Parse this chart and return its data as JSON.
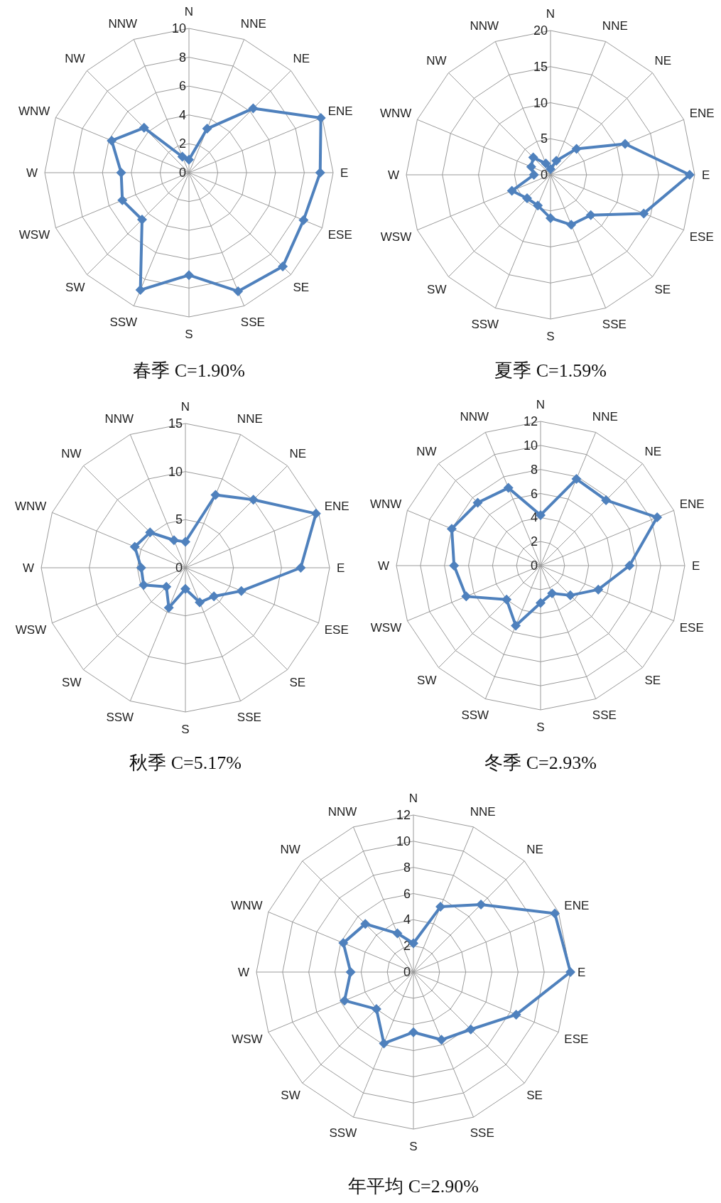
{
  "chart_data": [
    {
      "type": "radar",
      "title": "春季 C=1.90%",
      "categories": [
        "N",
        "NNE",
        "NE",
        "ENE",
        "E",
        "ESE",
        "SE",
        "SSE",
        "S",
        "SSW",
        "SW",
        "WSW",
        "W",
        "WNW",
        "NW",
        "NNW"
      ],
      "ylim": [
        0,
        10
      ],
      "yticks": [
        0,
        2,
        4,
        6,
        8,
        10
      ],
      "grid": true,
      "marker": "diamond",
      "series": [
        {
          "color": "#4f81bd",
          "values": [
            0.9,
            3.3,
            6.3,
            9.9,
            9.1,
            8.6,
            9.2,
            8.9,
            7.1,
            8.8,
            4.6,
            5.0,
            4.7,
            5.8,
            4.4,
            1.2
          ]
        }
      ]
    },
    {
      "type": "radar",
      "title": "夏季 C=1.59%",
      "categories": [
        "N",
        "NNE",
        "NE",
        "ENE",
        "E",
        "ESE",
        "SE",
        "SSE",
        "S",
        "SSW",
        "SW",
        "WSW",
        "W",
        "WNW",
        "NW",
        "NNW"
      ],
      "ylim": [
        0,
        20
      ],
      "yticks": [
        0,
        5,
        10,
        15,
        20
      ],
      "grid": true,
      "marker": "diamond",
      "series": [
        {
          "color": "#4f81bd",
          "values": [
            0.8,
            2.1,
            5.1,
            11.2,
            19.3,
            14.0,
            7.9,
            7.5,
            6.0,
            4.6,
            4.6,
            5.8,
            2.3,
            2.9,
            3.4,
            1.7
          ]
        }
      ]
    },
    {
      "type": "radar",
      "title": "秋季 C=5.17%",
      "categories": [
        "N",
        "NNE",
        "NE",
        "ENE",
        "E",
        "ESE",
        "SE",
        "SSE",
        "S",
        "SSW",
        "SW",
        "WSW",
        "W",
        "WNW",
        "NW",
        "NNW"
      ],
      "ylim": [
        0,
        15
      ],
      "yticks": [
        0,
        5,
        10,
        15
      ],
      "grid": true,
      "marker": "diamond",
      "series": [
        {
          "color": "#4f81bd",
          "values": [
            2.7,
            8.2,
            10.0,
            14.7,
            12.0,
            6.3,
            4.2,
            3.9,
            2.2,
            4.5,
            2.8,
            4.7,
            4.6,
            5.7,
            5.2,
            3.1
          ]
        }
      ]
    },
    {
      "type": "radar",
      "title": "冬季 C=2.93%",
      "categories": [
        "N",
        "NNE",
        "NE",
        "ENE",
        "E",
        "ESE",
        "SE",
        "SSE",
        "S",
        "SSW",
        "SW",
        "WSW",
        "W",
        "WNW",
        "NW",
        "NNW"
      ],
      "ylim": [
        0,
        12
      ],
      "yticks": [
        0,
        2,
        4,
        6,
        8,
        10,
        12
      ],
      "grid": true,
      "marker": "diamond",
      "series": [
        {
          "color": "#4f81bd",
          "values": [
            4.2,
            7.8,
            7.7,
            10.5,
            7.4,
            5.2,
            3.5,
            2.5,
            3.1,
            5.4,
            4.0,
            6.7,
            7.2,
            8.0,
            7.4,
            7.0
          ]
        }
      ]
    },
    {
      "type": "radar",
      "title": "年平均 C=2.90%",
      "categories": [
        "N",
        "NNE",
        "NE",
        "ENE",
        "E",
        "ESE",
        "SE",
        "SSE",
        "S",
        "SSW",
        "SW",
        "WSW",
        "W",
        "WNW",
        "NW",
        "NNW"
      ],
      "ylim": [
        0,
        12
      ],
      "yticks": [
        0,
        2,
        4,
        6,
        8,
        10,
        12
      ],
      "grid": true,
      "marker": "diamond",
      "series": [
        {
          "color": "#4f81bd",
          "values": [
            2.2,
            5.4,
            7.3,
            11.7,
            12.0,
            8.5,
            6.2,
            5.6,
            4.6,
            5.9,
            4.0,
            5.7,
            4.8,
            5.8,
            5.2,
            3.2
          ]
        }
      ]
    }
  ]
}
